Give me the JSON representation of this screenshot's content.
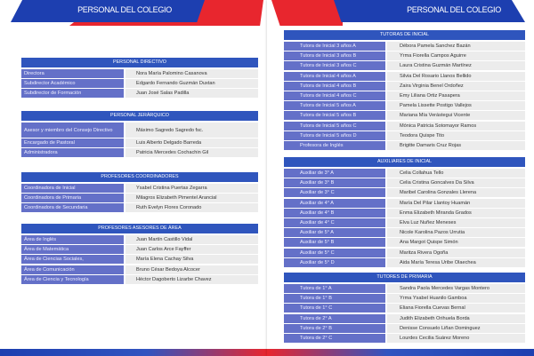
{
  "left_page": {
    "title": "PERSONAL DEL COLEGIO",
    "sections": [
      {
        "header": "PERSONAL DIRECTIVO",
        "rows": [
          {
            "role": "Directora",
            "name": "Nora María Palomino Casanova"
          },
          {
            "role": "Subdirector Académico",
            "name": "Edgardo Fernando Guzmán Duxtan"
          },
          {
            "role": "Subdirector de Formación",
            "name": "Juan José Salas Padilla"
          }
        ]
      },
      {
        "header": "PERSONAL JERÁRQUICO",
        "rows": [
          {
            "role": "Asesor y miembro del Consejo Directivo",
            "name": "Máximo Sagredo Sagredo fsc."
          },
          {
            "role": "Encargado de Pastoral",
            "name": "Luis Alberto Delgado Barreda"
          },
          {
            "role": "Administradora",
            "name": "Patricia Mercedes Cochachin Gil"
          }
        ]
      },
      {
        "header": "PROFESORES COORDINADORES",
        "rows": [
          {
            "role": "Coordinadora de Inicial",
            "name": "Ysabel Cristina Puertas Zegarra"
          },
          {
            "role": "Coordinadora de Primaria",
            "name": "Milagros Elizabeth Pimentel Arancial"
          },
          {
            "role": "Coordinadora de Secundaria",
            "name": "Ruth Evelyn Flores Coronado"
          }
        ]
      },
      {
        "header": "PROFESORES ASESORES DE ÁREA",
        "rows": [
          {
            "role": "Área de Inglés",
            "name": "Juan Martín Castillo Vidal"
          },
          {
            "role": "Área de Matemática",
            "name": "Juan Carlos Arce Fayffer"
          },
          {
            "role": "Área de Ciencias Sociales,",
            "name": "María Elena Cachay Silva"
          },
          {
            "role": "Área de Comunicación",
            "name": "Bruno César Bedoya Alcocer"
          },
          {
            "role": "Área de Ciencia y Tecnología",
            "name": "Héctor Dagoberto Lizarbe Chavez"
          }
        ]
      }
    ]
  },
  "right_page": {
    "title": "PERSONAL DEL COLEGIO",
    "sections": [
      {
        "header": "TUTORAS DE INICIAL",
        "rows": [
          {
            "role": "Tutora de Inicial 3 años A",
            "name": "Débora Pamela Sanchez Bazán"
          },
          {
            "role": "Tutora de Inicial 3 años B",
            "name": "Yrma Fiorella Campos Aguirre"
          },
          {
            "role": "Tutora de Inicial 3 años C",
            "name": "Laura Cristina Guzmán Martínez"
          },
          {
            "role": "Tutora de Inicial 4 años A",
            "name": "Silvia Del Rosario Llanos Bellido"
          },
          {
            "role": "Tutora de Inicial 4 años B",
            "name": "Zaira Virginia Benel Ordoñez"
          },
          {
            "role": "Tutora de Inicial 4 años C",
            "name": "Emy Liliana Ortiz Pasapera"
          },
          {
            "role": "Tutora de Inicial 5 años A",
            "name": "Pamela Lissette Postigo Vallejos"
          },
          {
            "role": "Tutora de Inicial 5 años B",
            "name": "Mariana Mía Verástegui Vicente"
          },
          {
            "role": "Tutora de Inicial 5 años C",
            "name": "Mónica Patricia Sotomayor Ramos"
          },
          {
            "role": "Tutora de Inicial 5 años D",
            "name": "Teodora Quispe Tito"
          },
          {
            "role": "Profesora de Inglés",
            "name": "Brigitte Damaris Cruz Rojas"
          }
        ]
      },
      {
        "header": "AUXILIARES DE INICIAL",
        "rows": [
          {
            "role": "Auxiliar de 3° A",
            "name": "Celia Collahua Tello"
          },
          {
            "role": "Auxiliar de 3° B",
            "name": "Celia Cristina Goncalves Da Silva"
          },
          {
            "role": "Auxiliar de 3° C",
            "name": "Maribel Carolina Gonzales Llerena"
          },
          {
            "role": "Auxiliar de 4° A",
            "name": "María Del Pilar Llantoy Huamán"
          },
          {
            "role": "Auxiliar de 4° B",
            "name": "Enma Elizabeth Miranda Grados"
          },
          {
            "role": "Auxiliar de 4° C",
            "name": "Elva Luz Nuñez Meneses"
          },
          {
            "role": "Auxiliar de 5° A",
            "name": "Nicole Karolina Pazos Urrutia"
          },
          {
            "role": "Auxiliar de 5° B",
            "name": "Ana Margot Quispe Simón"
          },
          {
            "role": "Auxiliar de 5° C",
            "name": "Maritza Rivera Ogoña"
          },
          {
            "role": "Auxiliar de 5° D",
            "name": "Aida María Teresa Uribe Olaechea"
          }
        ]
      },
      {
        "header": "TUTORES DE PRIMARIA",
        "rows": [
          {
            "role": "Tutora de 1° A",
            "name": "Sandra Paola Mercedes Vargas Montero"
          },
          {
            "role": "Tutora de 1° B",
            "name": "Yrma Ysabel Huanilo Gamboa"
          },
          {
            "role": "Tutora de 1° C",
            "name": "Eliana Fiorella Cuevas Bernal"
          },
          {
            "role": "Tutora de 2° A",
            "name": "Judith Elizabeth Orihuela Borda"
          },
          {
            "role": "Tutora de 2° B",
            "name": "Denisse Consuelo Liñan Dominguez"
          },
          {
            "role": "Tutora de 2° C",
            "name": "Lourdes Cecilia Suárez Moreno"
          }
        ]
      }
    ]
  },
  "colors": {
    "header_blue": "#2f55bd",
    "label_purple": "#6470c8",
    "value_gray": "#ececec",
    "banner_blue": "#1d3fb0",
    "banner_red": "#e8262e"
  }
}
